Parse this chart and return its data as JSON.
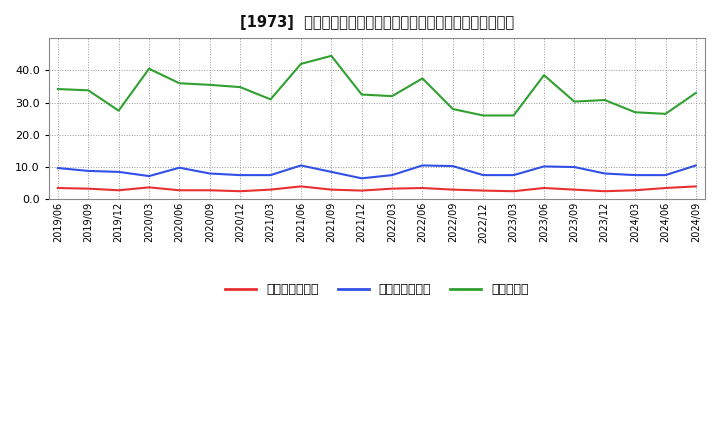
{
  "title": "[1973]  売上債権回転率、買入債務回転率、在庫回転率の推移",
  "labels": [
    "2019/06",
    "2019/09",
    "2019/12",
    "2020/03",
    "2020/06",
    "2020/09",
    "2020/12",
    "2021/03",
    "2021/06",
    "2021/09",
    "2021/12",
    "2022/03",
    "2022/06",
    "2022/09",
    "2022/12",
    "2023/03",
    "2023/06",
    "2023/09",
    "2023/12",
    "2024/03",
    "2024/06",
    "2024/09"
  ],
  "売上債権回転率": [
    3.5,
    3.3,
    2.8,
    3.7,
    2.8,
    2.8,
    2.5,
    3.0,
    4.0,
    3.0,
    2.7,
    3.3,
    3.5,
    3.0,
    2.7,
    2.5,
    3.5,
    3.0,
    2.5,
    2.8,
    3.5,
    4.0
  ],
  "買入債務回転率": [
    9.7,
    8.8,
    8.5,
    7.2,
    9.8,
    8.0,
    7.5,
    7.5,
    10.5,
    8.5,
    6.5,
    7.5,
    10.5,
    10.3,
    7.5,
    7.5,
    10.2,
    10.0,
    8.0,
    7.5,
    7.5,
    10.5
  ],
  "在庫回転率": [
    34.2,
    33.8,
    27.5,
    40.5,
    36.0,
    35.5,
    34.8,
    31.0,
    42.0,
    44.5,
    32.5,
    32.0,
    37.5,
    28.0,
    26.0,
    26.0,
    38.5,
    30.3,
    30.8,
    27.0,
    26.5,
    33.0
  ],
  "line_colors": {
    "売上債権回転率": "#e83030",
    "買入債務回転率": "#3050e8",
    "在庫回転率": "#30a030"
  },
  "legend_keys": [
    "売上債権回転率",
    "買入債務回転率",
    "在庫回転率"
  ],
  "legend_colors": [
    "#e83030",
    "#3050e8",
    "#30a030"
  ],
  "ylim": [
    0.0,
    50.0
  ],
  "yticks": [
    0.0,
    10.0,
    20.0,
    30.0,
    40.0
  ],
  "background_color": "#ffffff",
  "grid_color": "#999999"
}
